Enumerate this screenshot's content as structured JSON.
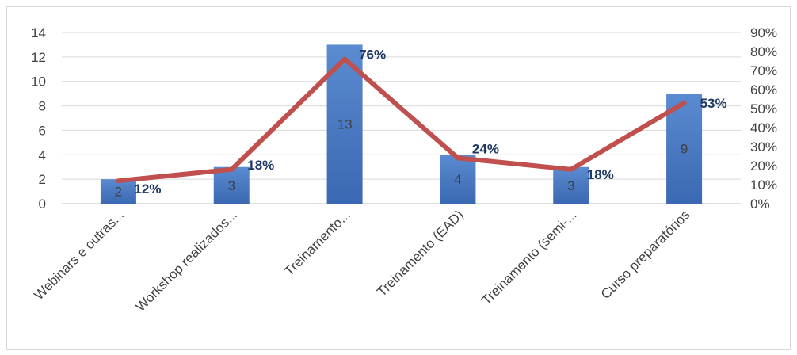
{
  "chart_data": {
    "type": "bar",
    "categories": [
      "Webinars e outras...",
      "Workshop realizados...",
      "Treinamento...",
      "Treinamento (EAD)",
      "Treinamento (semi-...",
      "Curso preparatórios"
    ],
    "series": [
      {
        "type": "bar",
        "axis": "left",
        "values": [
          2,
          3,
          13,
          4,
          3,
          9
        ],
        "labels": [
          "2",
          "3",
          "13",
          "4",
          "3",
          "9"
        ],
        "color": "#4472c4"
      },
      {
        "type": "line",
        "axis": "right",
        "values": [
          0.12,
          0.18,
          0.76,
          0.24,
          0.18,
          0.53
        ],
        "labels": [
          "12%",
          "18%",
          "76%",
          "24%",
          "18%",
          "53%"
        ],
        "color": "#c0504d"
      }
    ],
    "y_left": {
      "min": 0,
      "max": 14,
      "ticks": [
        "0",
        "2",
        "4",
        "6",
        "8",
        "10",
        "12",
        "14"
      ]
    },
    "y_right": {
      "min": 0,
      "max": 0.9,
      "ticks": [
        "0%",
        "10%",
        "20%",
        "30%",
        "40%",
        "50%",
        "60%",
        "70%",
        "80%",
        "90%"
      ]
    },
    "grid": true,
    "legend": "none"
  }
}
